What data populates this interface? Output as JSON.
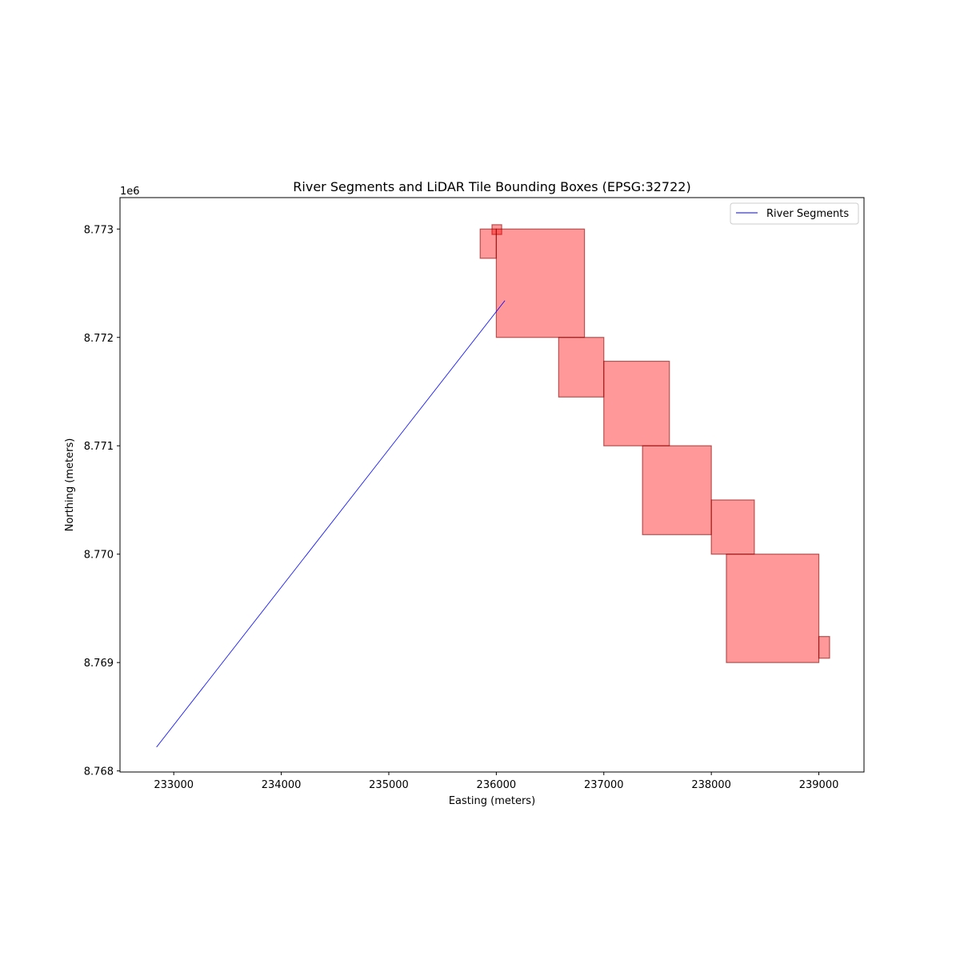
{
  "chart_data": {
    "type": "line",
    "title": "River Segments and LiDAR Tile Bounding Boxes (EPSG:32722)",
    "xlabel": "Easting (meters)",
    "ylabel": "Northing (meters)",
    "y_offset_label": "1e6",
    "xlim": [
      232500,
      239420
    ],
    "ylim": [
      8767990,
      8773290
    ],
    "x_ticks": [
      233000,
      234000,
      235000,
      236000,
      237000,
      238000,
      239000
    ],
    "x_tick_labels": [
      "233000",
      "234000",
      "235000",
      "236000",
      "237000",
      "238000",
      "239000"
    ],
    "y_ticks": [
      8768000,
      8769000,
      8770000,
      8771000,
      8772000,
      8773000
    ],
    "y_tick_labels": [
      "8.768",
      "8.769",
      "8.770",
      "8.771",
      "8.772",
      "8.773"
    ],
    "grid": false,
    "legend": {
      "placement": "top-right",
      "entries": [
        "River Segments"
      ]
    },
    "series": [
      {
        "name": "River Segments",
        "color": "#0000ff",
        "x": [
          232840,
          236080
        ],
        "y": [
          8768220,
          8772340
        ]
      }
    ],
    "boxes": {
      "fill_color": "#ff0000",
      "edge_color": "#8b0000",
      "items": [
        {
          "xmin": 235960,
          "xmax": 236050,
          "ymin": 8772950,
          "ymax": 8773040
        },
        {
          "xmin": 235850,
          "xmax": 236000,
          "ymin": 8772730,
          "ymax": 8773000
        },
        {
          "xmin": 236000,
          "xmax": 236820,
          "ymin": 8772000,
          "ymax": 8773000
        },
        {
          "xmin": 236580,
          "xmax": 237000,
          "ymin": 8771450,
          "ymax": 8772000
        },
        {
          "xmin": 237000,
          "xmax": 237610,
          "ymin": 8771000,
          "ymax": 8771780
        },
        {
          "xmin": 237360,
          "xmax": 238000,
          "ymin": 8770180,
          "ymax": 8771000
        },
        {
          "xmin": 238000,
          "xmax": 238400,
          "ymin": 8770000,
          "ymax": 8770500
        },
        {
          "xmin": 238140,
          "xmax": 239000,
          "ymin": 8769000,
          "ymax": 8770000
        },
        {
          "xmin": 239000,
          "xmax": 239100,
          "ymin": 8769040,
          "ymax": 8769240
        }
      ]
    }
  }
}
